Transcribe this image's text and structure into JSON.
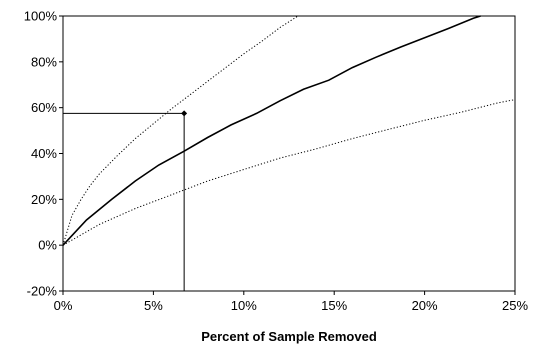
{
  "chart_data": {
    "type": "line",
    "title": "",
    "xlabel": "Percent of Sample Removed",
    "ylabel": "",
    "xlim": [
      0,
      25
    ],
    "ylim": [
      -20,
      100
    ],
    "x_ticks": [
      "0%",
      "5%",
      "10%",
      "15%",
      "20%",
      "25%"
    ],
    "y_ticks": [
      "-20%",
      "0%",
      "20%",
      "40%",
      "60%",
      "80%",
      "100%"
    ],
    "grid": false,
    "legend": "none",
    "series": [
      {
        "style": "solid",
        "color": "#000000",
        "x": [
          0,
          1.3,
          2.7,
          4.0,
          5.3,
          6.7,
          8.0,
          9.3,
          10.7,
          12.0,
          13.3,
          14.7,
          16.0,
          17.3,
          18.7,
          20.0,
          21.3,
          22.7,
          23.1
        ],
        "y": [
          0,
          11,
          20,
          28,
          35,
          41,
          47,
          52.5,
          57.5,
          63,
          68,
          72,
          77.5,
          82,
          86.5,
          90.5,
          94.5,
          99,
          100
        ]
      },
      {
        "style": "dotted",
        "color": "#000000",
        "x": [
          0,
          0.5,
          1.0,
          1.5,
          2.0,
          3.0,
          4.0,
          5.0,
          6.0,
          7.0,
          8.0,
          9.0,
          10.0,
          11.0,
          12.0,
          13.0
        ],
        "y": [
          0,
          13,
          20,
          26,
          31,
          39,
          46.5,
          53,
          59.5,
          65.5,
          71.5,
          77.5,
          83.5,
          89,
          95,
          100
        ]
      },
      {
        "style": "dotted",
        "color": "#000000",
        "x": [
          0,
          2,
          4,
          6,
          8,
          10,
          12,
          14,
          16,
          18,
          20,
          22,
          24,
          25
        ],
        "y": [
          0,
          9,
          16,
          22,
          28,
          33,
          38,
          42,
          46.5,
          50.5,
          54.5,
          58,
          62,
          63.5
        ]
      }
    ],
    "annotation": {
      "x": 6.7,
      "y": 57.5,
      "marker": "diamond"
    }
  }
}
